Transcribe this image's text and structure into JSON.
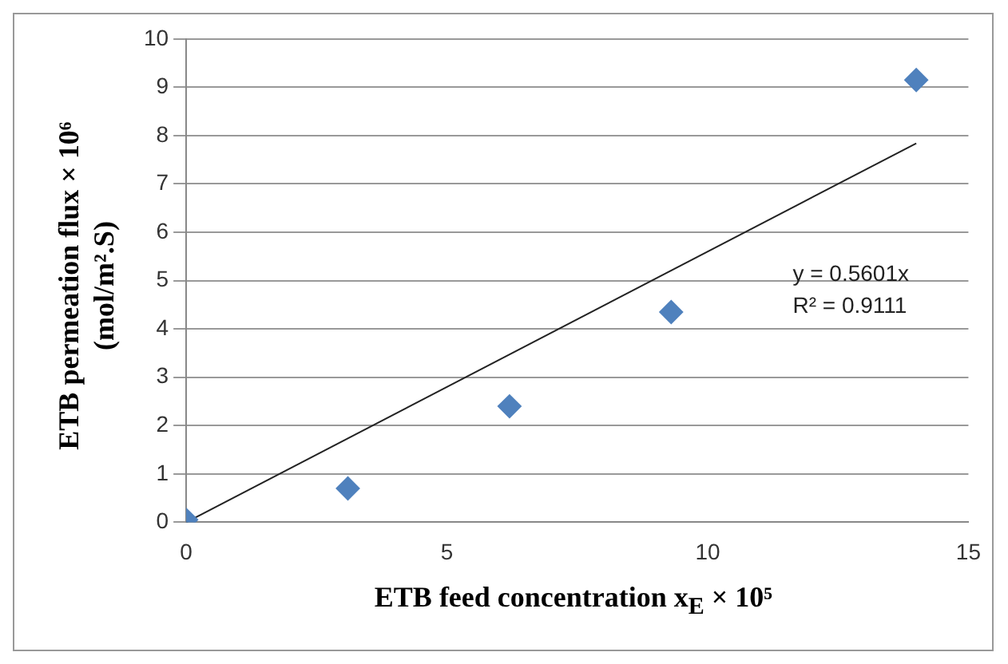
{
  "chart_data": {
    "type": "scatter",
    "xlabel": "ETB feed concentration x$_{E}$ × 10⁵",
    "ylabel": "ETB permeation flux × 10⁶\n(mol/m².S)",
    "x": [
      0,
      3.1,
      6.2,
      9.3,
      14
    ],
    "series": [
      {
        "color": "#4f81bd",
        "marker": "diamond",
        "values": [
          0.05,
          0.7,
          2.4,
          4.35,
          9.15
        ]
      },
      {
        "type": "line",
        "color": "#222222",
        "marker": "none",
        "x": [
          0,
          14
        ],
        "values": [
          0,
          7.84
        ]
      }
    ],
    "annotations": [
      "y = 0.5601x",
      "R² = 0.9111"
    ],
    "xlim": [
      0,
      15
    ],
    "xticks": [
      0,
      5,
      10,
      15
    ],
    "ylim": [
      0,
      10
    ],
    "yticks": [
      0,
      1,
      2,
      3,
      4,
      5,
      6,
      7,
      8,
      9,
      10
    ],
    "grid": "y",
    "legend": false
  }
}
